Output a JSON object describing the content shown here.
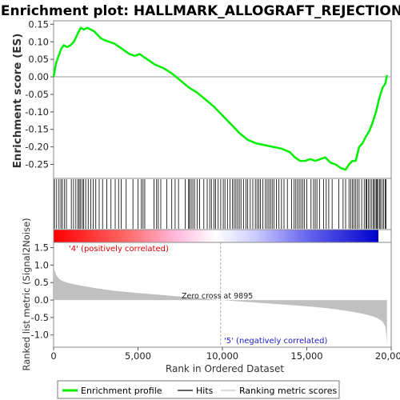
{
  "chart_data": [
    {
      "type": "line",
      "title": "Enrichment plot: HALLMARK_ALLOGRAFT_REJECTION",
      "ylabel": "Enrichment score (ES)",
      "ylim": [
        -0.29,
        0.16
      ],
      "xlim": [
        0,
        20000
      ],
      "yticks": [
        0.15,
        0.1,
        0.05,
        0.0,
        -0.05,
        -0.1,
        -0.15,
        -0.2,
        -0.25
      ],
      "ytick_labels": [
        "0.15",
        "0.10",
        "0.05",
        "0.00",
        "-0.05",
        "-0.10",
        "-0.15",
        "-0.20",
        "-0.25"
      ],
      "line_color": "#00ee00",
      "zero_line_color": "#999999",
      "series": [
        {
          "name": "Enrichment profile",
          "x": [
            0,
            150,
            300,
            450,
            600,
            800,
            1000,
            1200,
            1400,
            1600,
            1800,
            2000,
            2200,
            2400,
            2600,
            2800,
            3000,
            3300,
            3600,
            3900,
            4200,
            4500,
            4800,
            5100,
            5400,
            5700,
            6000,
            6500,
            7000,
            7500,
            8000,
            8500,
            9000,
            9500,
            10000,
            10500,
            11000,
            11500,
            12000,
            12500,
            13000,
            13500,
            14000,
            14300,
            14600,
            14900,
            15200,
            15500,
            15800,
            16100,
            16400,
            16700,
            17000,
            17300,
            17500,
            17700,
            17900,
            18100,
            18300,
            18500,
            18700,
            18900,
            19100,
            19300,
            19500,
            19650,
            19750
          ],
          "values": [
            0.0,
            0.04,
            0.06,
            0.08,
            0.09,
            0.085,
            0.09,
            0.1,
            0.12,
            0.14,
            0.135,
            0.14,
            0.135,
            0.13,
            0.12,
            0.11,
            0.105,
            0.1,
            0.095,
            0.085,
            0.075,
            0.065,
            0.06,
            0.065,
            0.055,
            0.045,
            0.035,
            0.025,
            0.01,
            -0.01,
            -0.03,
            -0.045,
            -0.065,
            -0.085,
            -0.11,
            -0.135,
            -0.16,
            -0.18,
            -0.19,
            -0.195,
            -0.2,
            -0.205,
            -0.215,
            -0.23,
            -0.24,
            -0.24,
            -0.235,
            -0.24,
            -0.235,
            -0.23,
            -0.245,
            -0.25,
            -0.26,
            -0.265,
            -0.25,
            -0.24,
            -0.24,
            -0.2,
            -0.19,
            -0.17,
            -0.155,
            -0.13,
            -0.1,
            -0.06,
            -0.03,
            -0.02,
            0.005
          ]
        }
      ]
    },
    {
      "type": "scatter",
      "subtype": "hits",
      "series": [
        {
          "name": "Hits",
          "x": [
            50,
            180,
            320,
            430,
            520,
            650,
            760,
            1050,
            1180,
            1320,
            1450,
            1520,
            1600,
            1700,
            1780,
            1900,
            2050,
            2200,
            2350,
            2500,
            2700,
            2900,
            3150,
            3400,
            3650,
            3850,
            4000,
            4300,
            4700,
            5000,
            5200,
            5300,
            5400,
            5950,
            6100,
            6200,
            6350,
            6700,
            7000,
            7200,
            7400,
            7800,
            8000,
            8050,
            8150,
            8250,
            8350,
            8500,
            8650,
            8900,
            9100,
            9250,
            9350,
            9500,
            9600,
            9750,
            9900,
            10050,
            10150,
            10300,
            10450,
            10600,
            10700,
            10800,
            10900,
            11000,
            11100,
            11250,
            11400,
            11500,
            11650,
            11800,
            11950,
            12050,
            12150,
            12250,
            12400,
            12550,
            12650,
            12750,
            12850,
            12950,
            13050,
            13200,
            13350,
            13500,
            13650,
            13850,
            14100,
            14250,
            14350,
            14450,
            14550,
            14650,
            14750,
            14850,
            15000,
            15250,
            15400,
            15500,
            15600,
            15750,
            16000,
            16150,
            16300,
            16500,
            16900,
            17150,
            17300,
            17500,
            17600,
            17700,
            17800,
            17900,
            18000,
            18100,
            18250,
            18400,
            18500,
            18550,
            18650,
            18750,
            18850,
            18950,
            19000,
            19100,
            19150,
            19200,
            19300,
            19350,
            19450,
            19550,
            19650,
            19700
          ]
        }
      ]
    },
    {
      "type": "area",
      "ylabel": "Ranked list metric (Signal2Noise)",
      "xlabel": "Rank in Ordered Dataset",
      "xlim": [
        0,
        20000
      ],
      "ylim": [
        -1.35,
        1.65
      ],
      "xticks": [
        0,
        5000,
        10000,
        15000,
        20000
      ],
      "xtick_labels": [
        "0",
        "5,000",
        "10,000",
        "15,000",
        "20,000"
      ],
      "yticks": [
        1.5,
        1.0,
        0.5,
        0.0,
        -0.5,
        -1.0
      ],
      "ytick_labels": [
        "1.5",
        "1.0",
        "0.5",
        "0.0",
        "-0.5",
        "-1.0"
      ],
      "fill_color": "#c0c0c0",
      "series": [
        {
          "name": "Ranking metric scores",
          "x": [
            0,
            50,
            150,
            300,
            500,
            800,
            1200,
            1800,
            2500,
            3500,
            5000,
            6500,
            8000,
            9000,
            9895,
            11000,
            12500,
            14000,
            15500,
            16500,
            17500,
            18200,
            18800,
            19200,
            19500,
            19650,
            19700,
            19750
          ],
          "values": [
            1.02,
            0.85,
            0.72,
            0.62,
            0.55,
            0.5,
            0.45,
            0.4,
            0.34,
            0.27,
            0.2,
            0.14,
            0.08,
            0.04,
            0.0,
            -0.04,
            -0.09,
            -0.14,
            -0.2,
            -0.25,
            -0.32,
            -0.38,
            -0.45,
            -0.52,
            -0.62,
            -0.75,
            -0.95,
            -1.28
          ]
        }
      ],
      "annotations": {
        "positive": "'4' (positively correlated)",
        "negative": "'5' (negatively correlated)",
        "zero_cross": "Zero cross at 9895"
      },
      "zero_cross_rank": 9895,
      "positive_color": "#ff0000",
      "negative_color": "#0000ff"
    }
  ],
  "legend": {
    "items": [
      {
        "label": "Enrichment profile",
        "color": "#00ee00"
      },
      {
        "label": "Hits",
        "color": "#000000"
      },
      {
        "label": "Ranking metric scores",
        "color": "#c0c0c0"
      }
    ]
  }
}
